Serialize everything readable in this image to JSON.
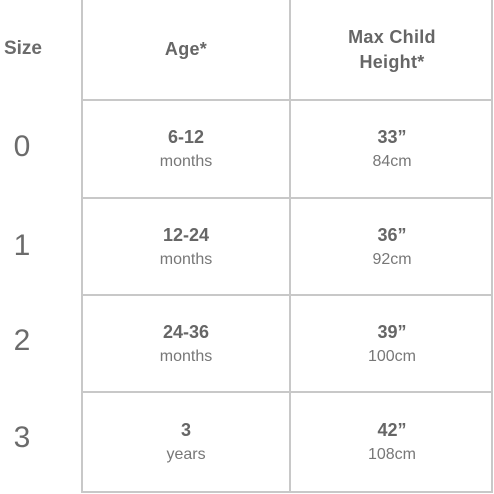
{
  "size_column": {
    "header": "Size",
    "values": [
      "0",
      "1",
      "2",
      "3"
    ]
  },
  "table": {
    "headers": {
      "age": "Age*",
      "height": "Max Child Height*"
    },
    "rows": [
      {
        "age_main": "6-12",
        "age_sub": "months",
        "height_main": "33”",
        "height_sub": "84cm"
      },
      {
        "age_main": "12-24",
        "age_sub": "months",
        "height_main": "36”",
        "height_sub": "92cm"
      },
      {
        "age_main": "24-36",
        "age_sub": "months",
        "height_main": "39”",
        "height_sub": "100cm"
      },
      {
        "age_main": "3",
        "age_sub": "years",
        "height_main": "42”",
        "height_sub": "108cm"
      }
    ]
  },
  "colors": {
    "border": "#c8c8c8",
    "text": "#666666"
  }
}
